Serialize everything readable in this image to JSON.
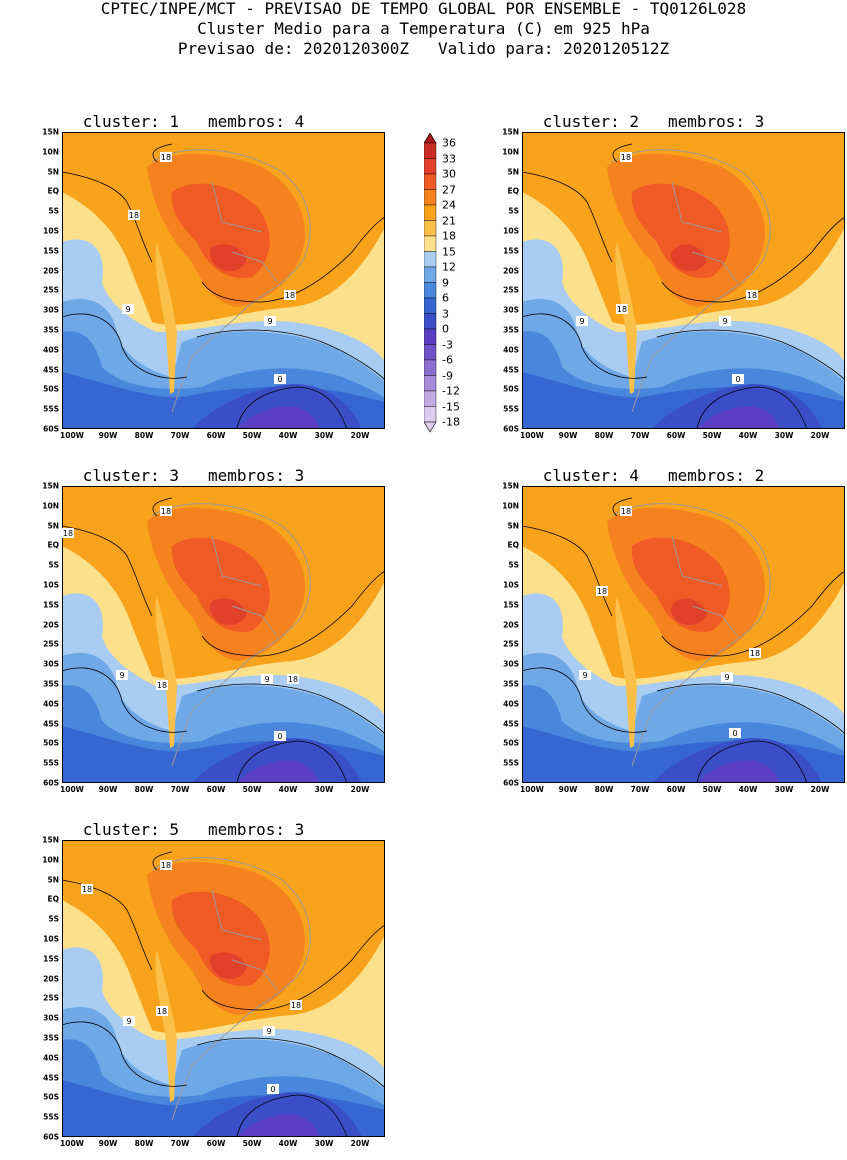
{
  "header": {
    "line1": "CPTEC/INPE/MCT - PREVISAO DE TEMPO GLOBAL POR ENSEMBLE - TQ0126L028",
    "line2": "Cluster Medio para a Temperatura (C) em 925 hPa",
    "line3": "Previsao de: 2020120300Z   Valido para: 2020120512Z"
  },
  "colors": {
    "t36": "#a8191e",
    "t33": "#c82c24",
    "t30": "#e1412b",
    "t27": "#f05a24",
    "t24": "#f5821f",
    "t21": "#f9a21c",
    "t18": "#fbc04a",
    "t15": "#fde08c",
    "t12": "#a9cdf2",
    "t9": "#6fa8e6",
    "t6": "#4a86dc",
    "t3": "#3566d2",
    "t0": "#3a4ec8",
    "tm3": "#5a3fc2",
    "tm6": "#7352c8",
    "tm9": "#8c6ed0",
    "tm12": "#a78ad9",
    "tm15": "#c2a9e2",
    "tm18": "#dccbee",
    "land_outline": "#9a9a9a",
    "contour": "#000000"
  },
  "axis": {
    "lat_labels": [
      "15N",
      "10N",
      "5N",
      "EQ",
      "5S",
      "10S",
      "15S",
      "20S",
      "25S",
      "30S",
      "35S",
      "40S",
      "45S",
      "50S",
      "55S",
      "60S"
    ],
    "lon_labels": [
      "100W",
      "90W",
      "80W",
      "70W",
      "60W",
      "50W",
      "40W",
      "30W",
      "20W"
    ]
  },
  "colorbar": {
    "labels": [
      "36",
      "33",
      "30",
      "27",
      "24",
      "21",
      "18",
      "15",
      "12",
      "9",
      "6",
      "3",
      "0",
      "-3",
      "-6",
      "-9",
      "-12",
      "-15",
      "-18"
    ]
  },
  "panels": [
    {
      "cluster_label": "cluster:",
      "cluster": "1",
      "members_label": "membros:",
      "members": "4",
      "contour_labels": [
        "18",
        "18",
        "18",
        "9",
        "9",
        "0"
      ]
    },
    {
      "cluster_label": "cluster:",
      "cluster": "2",
      "members_label": "membros:",
      "members": "3",
      "contour_labels": [
        "18",
        "18",
        "18",
        "9",
        "9",
        "0"
      ]
    },
    {
      "cluster_label": "cluster:",
      "cluster": "3",
      "members_label": "membros:",
      "members": "3",
      "contour_labels": [
        "18",
        "18",
        "18",
        "18",
        "9",
        "9",
        "0"
      ]
    },
    {
      "cluster_label": "cluster:",
      "cluster": "4",
      "members_label": "membros:",
      "members": "2",
      "contour_labels": [
        "18",
        "18",
        "18",
        "9",
        "9",
        "0"
      ]
    },
    {
      "cluster_label": "cluster:",
      "cluster": "5",
      "members_label": "membros:",
      "members": "3",
      "contour_labels": [
        "18",
        "18",
        "18",
        "18",
        "9",
        "9",
        "0"
      ]
    }
  ]
}
